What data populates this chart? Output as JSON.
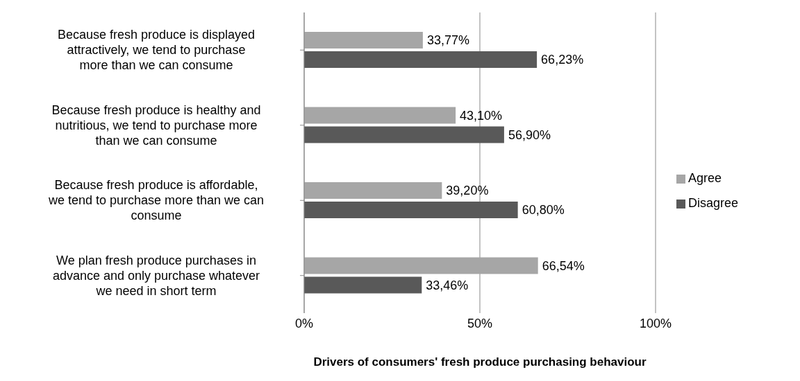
{
  "chart_data": {
    "type": "bar",
    "orientation": "horizontal",
    "xlabel": "Drivers of consumers' fresh produce purchasing behaviour",
    "categories": [
      "Because fresh produce is displayed attractively, we tend to purchase more than we can consume",
      "Because fresh produce is healthy and nutritious, we tend to purchase more than we can consume",
      "Because fresh produce is affordable, we tend to purchase more than we can consume",
      "We plan fresh produce purchases in advance and only purchase whatever we need in short term"
    ],
    "series": [
      {
        "name": "Agree",
        "color": "#a6a6a6",
        "values": [
          33.77,
          43.1,
          39.2,
          66.54
        ],
        "value_labels": [
          "33,77%",
          "43,10%",
          "39,20%",
          "66,54%"
        ]
      },
      {
        "name": "Disagree",
        "color": "#595959",
        "values": [
          66.23,
          56.9,
          60.8,
          33.46
        ],
        "value_labels": [
          "66,23%",
          "56,90%",
          "60,80%",
          "33,46%"
        ]
      }
    ],
    "xlim": [
      0,
      100
    ],
    "xticks": [
      {
        "value": 0,
        "label": "0%"
      },
      {
        "value": 50,
        "label": "50%"
      },
      {
        "value": 100,
        "label": "100%"
      }
    ],
    "grid": "x",
    "legend": "right"
  }
}
